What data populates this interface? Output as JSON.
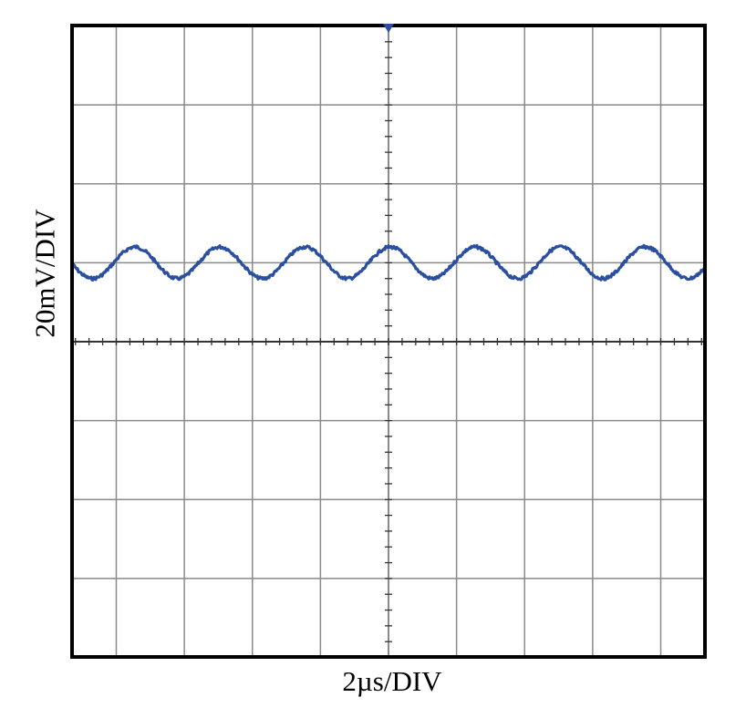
{
  "chart_data": {
    "type": "line",
    "title": "",
    "xlabel": "2µs/DIV",
    "ylabel": "20mV/DIV",
    "x_divisions": 9.3,
    "y_divisions": 8,
    "grid": true,
    "xlim_div": [
      0,
      9.3
    ],
    "ylim_div": [
      -4,
      4
    ],
    "trigger_marker": "top-center",
    "series": [
      {
        "color": "#2a4fa0",
        "waveform": "sine",
        "offset_div": 1.0,
        "amplitude_div": 0.2,
        "period_div": 1.25,
        "noise_div": 0.02
      }
    ]
  },
  "colors": {
    "frame": "#000000",
    "grid": "#8a8a8a",
    "trace": "#2a4fa0",
    "background": "#ffffff"
  }
}
